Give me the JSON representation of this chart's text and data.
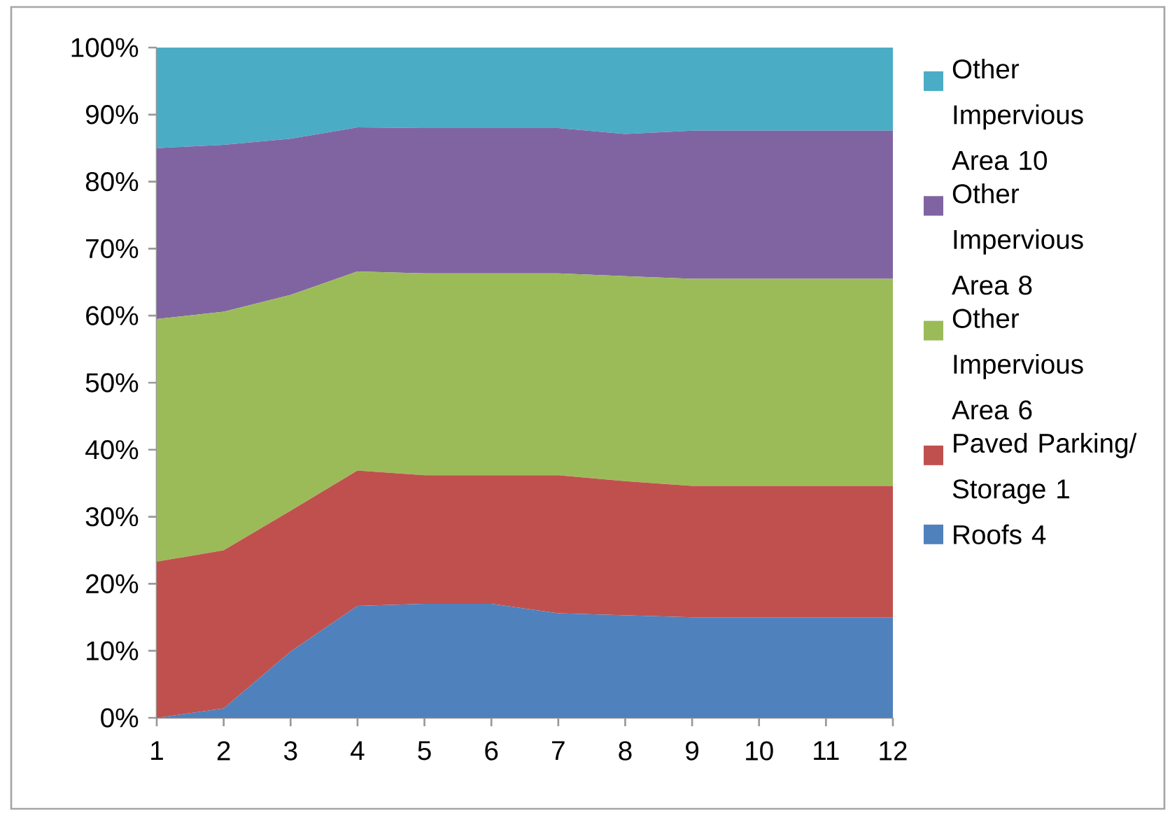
{
  "chart_data": {
    "type": "area",
    "stacked": true,
    "categories": [
      "1",
      "2",
      "3",
      "4",
      "5",
      "6",
      "7",
      "8",
      "9",
      "10",
      "11",
      "12"
    ],
    "ylim": [
      0,
      100
    ],
    "yticks": [
      {
        "value": 0,
        "label": "0%"
      },
      {
        "value": 10,
        "label": "10%"
      },
      {
        "value": 20,
        "label": "20%"
      },
      {
        "value": 30,
        "label": "30%"
      },
      {
        "value": 40,
        "label": "40%"
      },
      {
        "value": 50,
        "label": "50%"
      },
      {
        "value": 60,
        "label": "60%"
      },
      {
        "value": 70,
        "label": "70%"
      },
      {
        "value": 80,
        "label": "80%"
      },
      {
        "value": 90,
        "label": "90%"
      },
      {
        "value": 100,
        "label": "100%"
      }
    ],
    "legend": "right",
    "grid": false,
    "series": [
      {
        "name": "Roofs 4",
        "color": "#4f81bd",
        "values": [
          0,
          1.4,
          9.9,
          16.7,
          17.0,
          17.0,
          15.6,
          15.3,
          15.0,
          15.0,
          15.0,
          15.0
        ]
      },
      {
        "name": "Paved Parking/ Storage 1",
        "color": "#c0504d",
        "values": [
          23.3,
          23.6,
          21.0,
          20.2,
          19.2,
          19.2,
          20.6,
          20.0,
          19.6,
          19.6,
          19.6,
          19.6
        ]
      },
      {
        "name": "Other Impervious Area 6",
        "color": "#9bbb59",
        "values": [
          36.2,
          35.6,
          32.2,
          29.7,
          30.1,
          30.1,
          30.1,
          30.6,
          30.9,
          30.9,
          30.9,
          30.9
        ]
      },
      {
        "name": "Other Impervious Area 8",
        "color": "#8064a2",
        "values": [
          25.5,
          24.9,
          23.3,
          21.5,
          21.7,
          21.7,
          21.7,
          21.2,
          22.1,
          22.1,
          22.1,
          22.1
        ]
      },
      {
        "name": "Other Impervious Area 10",
        "color": "#4bacc6",
        "values": [
          15.0,
          14.5,
          13.6,
          11.9,
          12.0,
          12.0,
          12.0,
          12.9,
          12.4,
          12.4,
          12.4,
          12.4
        ]
      }
    ]
  }
}
